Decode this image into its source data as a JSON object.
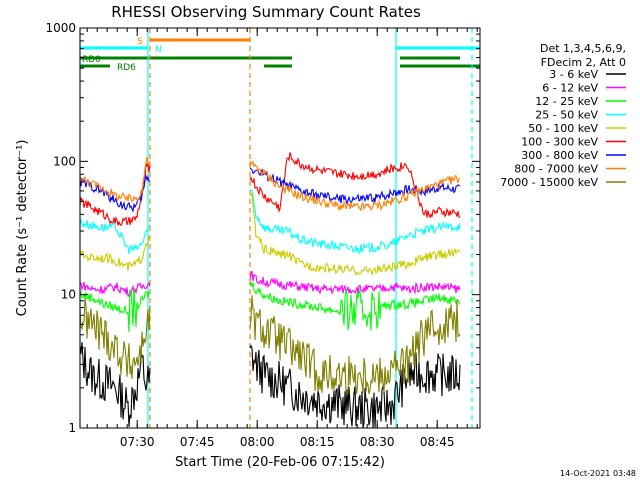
{
  "chart_data": {
    "type": "line",
    "title": "RHESSI Observing Summary Count Rates",
    "xlabel": "Start Time (20-Feb-06 07:15:42)",
    "ylabel": "Count Rate (s⁻¹ detector⁻¹)",
    "yscale": "log",
    "ylim": [
      1,
      1000
    ],
    "xlim_minutes": [
      0,
      100
    ],
    "y_ticks": [
      {
        "value": 1,
        "label": "1"
      },
      {
        "value": 10,
        "label": "10"
      },
      {
        "value": 100,
        "label": "100"
      },
      {
        "value": 1000,
        "label": "1000"
      }
    ],
    "x_ticks": [
      {
        "minute": 14.3,
        "label": "07:30"
      },
      {
        "minute": 29.3,
        "label": "07:45"
      },
      {
        "minute": 44.3,
        "label": "08:00"
      },
      {
        "minute": 59.3,
        "label": "08:15"
      },
      {
        "minute": 74.3,
        "label": "08:30"
      },
      {
        "minute": 89.3,
        "label": "08:45"
      }
    ],
    "legend_header": [
      "Det 1,3,4,5,6,9,",
      "FDecim 2, Att 0"
    ],
    "legend_position": "right",
    "gaps_minutes": [
      [
        17.5,
        42.5
      ]
    ],
    "series": [
      {
        "name": "3 - 6 keV",
        "color": "#000000",
        "x": [
          0,
          3,
          6,
          9,
          12,
          14,
          15.5,
          16.5,
          43,
          44,
          46,
          50,
          55,
          60,
          65,
          70,
          75,
          78,
          82,
          86,
          90,
          95
        ],
        "values": [
          3.5,
          2.5,
          2.2,
          2,
          1.4,
          2,
          3,
          2.2,
          3.5,
          3,
          2.5,
          2.2,
          1.8,
          1.6,
          1.5,
          1.4,
          1.4,
          1.5,
          2.5,
          2.6,
          2.5,
          2.5
        ]
      },
      {
        "name": "6 - 12 keV",
        "color": "#ff00ff",
        "x": [
          0,
          3,
          6,
          9,
          12,
          14,
          15.5,
          16.5,
          43,
          44,
          46,
          50,
          55,
          60,
          65,
          70,
          75,
          78,
          82,
          86,
          90,
          95
        ],
        "values": [
          12,
          11,
          11,
          11.5,
          10.5,
          11,
          11.5,
          12,
          14,
          13,
          12.5,
          12,
          11.5,
          11,
          11,
          11,
          11,
          11.5,
          11,
          11.5,
          11.5,
          11
        ]
      },
      {
        "name": "12 - 25 keV",
        "color": "#00ff00",
        "x": [
          0,
          3,
          6,
          9,
          12,
          14,
          15.5,
          16.5,
          43,
          44,
          46,
          50,
          55,
          60,
          65,
          70,
          75,
          78,
          82,
          86,
          90,
          95
        ],
        "values": [
          10,
          9.5,
          8.5,
          8,
          7.5,
          8,
          9,
          10,
          12,
          11,
          10,
          9,
          8.5,
          8,
          7.5,
          7.5,
          8,
          8.5,
          8.5,
          9,
          9.5,
          9
        ]
      },
      {
        "name": "25 - 50 keV",
        "color": "#00ffff",
        "x": [
          0,
          3,
          6,
          9,
          12,
          14,
          15.5,
          16.5,
          43,
          44,
          46,
          50,
          52,
          55,
          60,
          65,
          70,
          75,
          78,
          82,
          86,
          90,
          95
        ],
        "values": [
          35,
          33,
          32,
          32,
          22,
          22,
          24,
          30,
          60,
          40,
          32,
          30,
          30,
          26,
          24,
          23,
          22,
          23,
          24,
          28,
          30,
          32,
          33
        ]
      },
      {
        "name": "50 - 100 keV",
        "color": "#cccc00",
        "x": [
          0,
          3,
          6,
          9,
          12,
          14,
          15.5,
          16.5,
          43,
          44,
          46,
          50,
          52,
          55,
          60,
          65,
          70,
          75,
          78,
          82,
          86,
          90,
          95
        ],
        "values": [
          20,
          19,
          19,
          18,
          16,
          17,
          19,
          25,
          55,
          28,
          22,
          20,
          20,
          17,
          16,
          15.5,
          15,
          15.5,
          16,
          17,
          19,
          20,
          21
        ]
      },
      {
        "name": "100 - 300 keV",
        "color": "#ff0000",
        "x": [
          0,
          3,
          6,
          9,
          12,
          14,
          15.5,
          16.5,
          43,
          44,
          46,
          50,
          52,
          55,
          60,
          65,
          70,
          75,
          78,
          82,
          86,
          90,
          95
        ],
        "values": [
          50,
          45,
          40,
          35,
          35,
          37,
          55,
          90,
          75,
          65,
          55,
          45,
          112,
          95,
          85,
          80,
          78,
          82,
          88,
          95,
          40,
          42,
          40
        ]
      },
      {
        "name": "300 - 800 keV",
        "color": "#0000ff",
        "x": [
          0,
          3,
          6,
          9,
          12,
          14,
          15.5,
          16.5,
          43,
          44,
          46,
          50,
          55,
          60,
          65,
          70,
          75,
          78,
          82,
          86,
          90,
          95
        ],
        "values": [
          70,
          65,
          58,
          50,
          45,
          46,
          55,
          75,
          88,
          85,
          80,
          70,
          60,
          55,
          52,
          52,
          54,
          58,
          62,
          60,
          64,
          62
        ]
      },
      {
        "name": "800 - 7000 keV",
        "color": "#ff8000",
        "x": [
          0,
          3,
          6,
          9,
          12,
          14,
          15.5,
          16.5,
          43,
          44,
          46,
          50,
          55,
          60,
          65,
          70,
          75,
          78,
          82,
          86,
          90,
          95
        ],
        "values": [
          75,
          68,
          62,
          55,
          52,
          53,
          60,
          100,
          95,
          90,
          82,
          65,
          55,
          50,
          46,
          45,
          47,
          50,
          55,
          62,
          68,
          75
        ]
      },
      {
        "name": "7000 - 15000 keV",
        "color": "#808000",
        "x": [
          0,
          3,
          6,
          9,
          12,
          14,
          15.5,
          16.5,
          43,
          44,
          46,
          50,
          55,
          60,
          65,
          70,
          75,
          78,
          82,
          86,
          90,
          95
        ],
        "values": [
          7,
          6,
          5,
          4,
          3,
          3.2,
          4,
          6,
          7,
          6,
          5.5,
          4.5,
          3.5,
          2.5,
          2.5,
          2.5,
          2.5,
          2.8,
          3,
          5,
          6,
          6.5
        ]
      }
    ],
    "vlines": [
      {
        "minute": 0,
        "color": "#00ffff",
        "style": "solid"
      },
      {
        "minute": 17,
        "color": "#00ffff",
        "style": "solid"
      },
      {
        "minute": 17.5,
        "color": "#ff8000",
        "style": "dashed"
      },
      {
        "minute": 42.5,
        "color": "#ff8000",
        "style": "dashed"
      },
      {
        "minute": 79,
        "color": "#00ffff",
        "style": "solid"
      },
      {
        "minute": 98,
        "color": "#00ffff",
        "style": "dashed"
      }
    ],
    "status_bars": [
      {
        "label": "S",
        "color": "#ff8000",
        "level": 0,
        "segments": [
          [
            17.5,
            42.5
          ]
        ]
      },
      {
        "label": "N",
        "color": "#00ffff",
        "level": 1,
        "segments": [
          [
            0,
            17
          ],
          [
            79,
            100
          ]
        ]
      },
      {
        "label": "RD0",
        "color": "#008000",
        "level": 2,
        "segments": [
          [
            0,
            42.5
          ],
          [
            42.5,
            53
          ],
          [
            80,
            95
          ]
        ]
      },
      {
        "label": "RD6",
        "color": "#008000",
        "level": 3,
        "segments": [
          [
            0,
            7.5
          ],
          [
            46,
            53
          ],
          [
            80,
            100
          ]
        ]
      }
    ],
    "footer_date": "14-Oct-2021 03:48"
  }
}
